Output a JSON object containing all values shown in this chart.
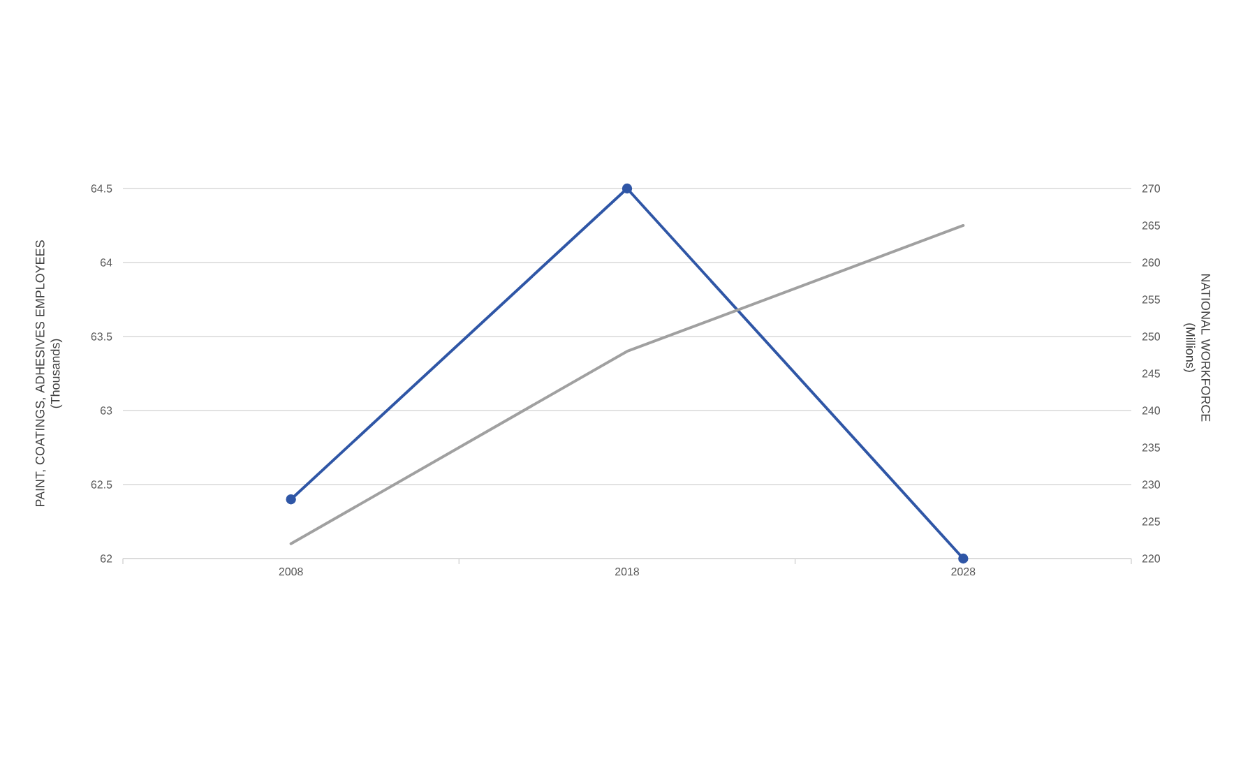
{
  "chart_data": {
    "type": "line",
    "categories": [
      "2008",
      "2018",
      "2028"
    ],
    "ylabel": "PAINT, COATINGS, ADHESIVES EMPLOYEES (Thousands)",
    "y2label": "NATIONAL WORKFORCE (Millions)",
    "series": [
      {
        "color": "#2f56a6",
        "values": [
          62.4,
          64.5,
          62.0
        ],
        "marker": "circle"
      },
      {
        "color": "#a0a0a0",
        "values": [
          222,
          248,
          265
        ],
        "axis": "y2",
        "marker": "none"
      }
    ],
    "ylim": [
      62,
      64.5
    ],
    "yticks": [
      62,
      62.5,
      63,
      63.5,
      64,
      64.5
    ],
    "y2lim": [
      220,
      270
    ],
    "y2ticks": [
      220,
      225,
      230,
      235,
      240,
      245,
      250,
      255,
      260,
      265,
      270
    ],
    "grid": "y",
    "line_style": "solid"
  }
}
